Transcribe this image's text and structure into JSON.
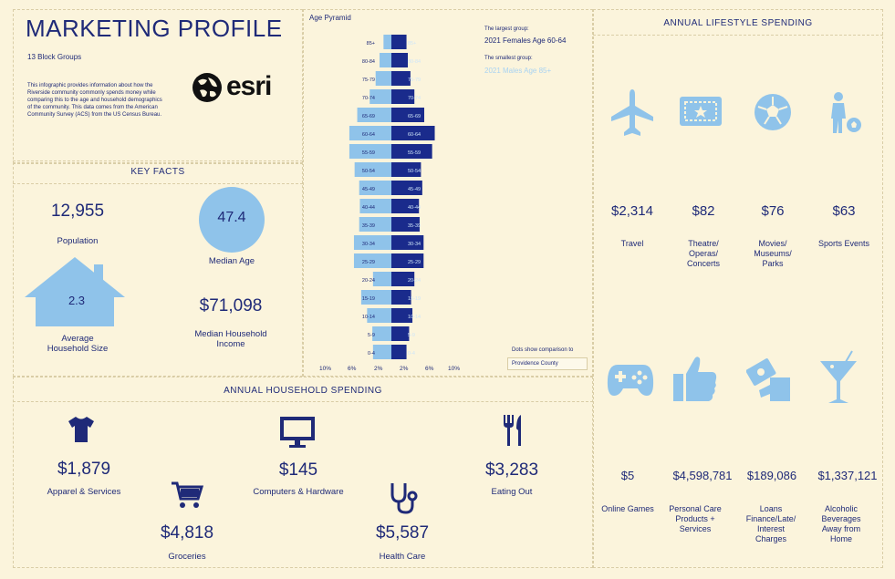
{
  "header": {
    "title": "MARKETING PROFILE",
    "subtitle": "13 Block Groups",
    "description": "This infographic provides information about how the Riverside community commonly spends money while comparing this to the age and household demographics of the community. This data comes from the American Community Survey (ACS) from the US Census Bureau.",
    "logo_text": "esri"
  },
  "key_facts": {
    "heading": "KEY FACTS",
    "population_value": "12,955",
    "population_label": "Population",
    "median_age_value": "47.4",
    "median_age_label": "Median Age",
    "household_size_value": "2.3",
    "household_size_label": "Average Household Size",
    "income_value": "$71,098",
    "income_label": "Median Household Income"
  },
  "pyramid": {
    "title": "Age Pyramid",
    "largest_label": "The largest group:",
    "largest_value": "2021 Females Age 60-64",
    "smallest_label": "The smallest group:",
    "smallest_value": "2021 Males Age 85+",
    "dots_note": "Dots show comparison to",
    "comparison_area": "Providence County",
    "x_ticks": [
      "10%",
      "6%",
      "2%",
      "2%",
      "6%",
      "10%"
    ],
    "colors": {
      "male": "#8fc3ea",
      "female": "#1a2b8c"
    }
  },
  "chart_data": {
    "type": "bar",
    "title": "Age Pyramid",
    "categories": [
      "85+",
      "80-84",
      "75-79",
      "70-74",
      "65-69",
      "60-64",
      "55-59",
      "50-54",
      "45-49",
      "40-44",
      "35-39",
      "30-34",
      "25-29",
      "20-24",
      "15-19",
      "10-14",
      "5-9",
      "0-4"
    ],
    "series": [
      {
        "name": "Males",
        "values": [
          1.2,
          1.8,
          2.4,
          3.3,
          5.2,
          6.4,
          6.4,
          5.6,
          4.9,
          4.8,
          4.9,
          5.7,
          5.7,
          2.8,
          4.6,
          3.7,
          2.9,
          2.8
        ]
      },
      {
        "name": "Females",
        "values": [
          2.3,
          2.5,
          2.9,
          3.5,
          5.0,
          6.6,
          6.2,
          4.5,
          4.7,
          4.2,
          4.3,
          4.9,
          4.9,
          3.5,
          3.0,
          3.2,
          2.7,
          2.3
        ]
      }
    ],
    "xlim": [
      -10,
      10
    ],
    "xlabel": "",
    "ylabel": ""
  },
  "household": {
    "heading": "ANNUAL HOUSEHOLD SPENDING",
    "items": [
      {
        "value": "$1,879",
        "label": "Apparel & Services",
        "icon": "tshirt-icon"
      },
      {
        "value": "$4,818",
        "label": "Groceries",
        "icon": "cart-icon"
      },
      {
        "value": "$145",
        "label": "Computers & Hardware",
        "icon": "monitor-icon"
      },
      {
        "value": "$5,587",
        "label": "Health Care",
        "icon": "stethoscope-icon"
      },
      {
        "value": "$3,283",
        "label": "Eating Out",
        "icon": "fork-knife-icon"
      }
    ]
  },
  "lifestyle": {
    "heading": "ANNUAL LIFESTYLE SPENDING",
    "items": [
      {
        "value": "$2,314",
        "label": "Travel",
        "icon": "airplane-icon"
      },
      {
        "value": "$82",
        "label": "Theatre/ Operas/ Concerts",
        "icon": "ticket-icon"
      },
      {
        "value": "$76",
        "label": "Movies/ Museums/ Parks",
        "icon": "soccer-ball-icon"
      },
      {
        "value": "$63",
        "label": "Sports Events",
        "icon": "soccer-player-icon"
      },
      {
        "value": "$5",
        "label": "Online Games",
        "icon": "gamepad-icon"
      },
      {
        "value": "$4,598,781",
        "label": "Personal Care Products + Services",
        "icon": "thumbs-up-icon"
      },
      {
        "value": "$189,086",
        "label": "Loans Finance/Late/ Interest Charges",
        "icon": "money-hand-icon"
      },
      {
        "value": "$1,337,121",
        "label": "Alcoholic Beverages Away from Home",
        "icon": "cocktail-icon"
      }
    ],
    "icon_color": "#8fc3ea"
  }
}
